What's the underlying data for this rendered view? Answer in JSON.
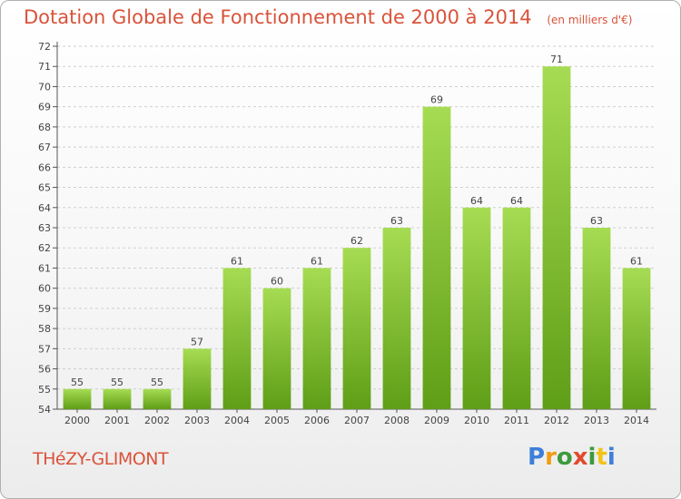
{
  "title": "Dotation Globale de Fonctionnement de 2000 à 2014",
  "subtitle": "(en milliers d'€)",
  "commune": "THéZY-GLIMONT",
  "logo": {
    "letters": [
      "P",
      "r",
      "o",
      "x",
      "i",
      "t",
      "i"
    ],
    "colors": [
      "#3d7fd8",
      "#f39c12",
      "#3d9a3d",
      "#e2492f",
      "#3d9a3d",
      "#f0c419",
      "#3d7fd8"
    ]
  },
  "colors": {
    "bar_light": "#a6dc53",
    "bar_dark": "#5f9e17",
    "title": "#d9533a",
    "grid": "#cfcfcf"
  },
  "chart_data": {
    "type": "bar",
    "categories": [
      "2000",
      "2001",
      "2002",
      "2003",
      "2004",
      "2005",
      "2006",
      "2007",
      "2008",
      "2009",
      "2010",
      "2011",
      "2012",
      "2013",
      "2014"
    ],
    "values": [
      55,
      55,
      55,
      57,
      61,
      60,
      61,
      62,
      63,
      69,
      64,
      64,
      71,
      63,
      61
    ],
    "title": "Dotation Globale de Fonctionnement de 2000 à 2014",
    "subtitle": "(en milliers d'€)",
    "ylim": [
      54,
      72
    ],
    "yticks": [
      54,
      55,
      56,
      57,
      58,
      59,
      60,
      61,
      62,
      63,
      64,
      65,
      66,
      67,
      68,
      69,
      70,
      71,
      72
    ],
    "grid": true
  }
}
